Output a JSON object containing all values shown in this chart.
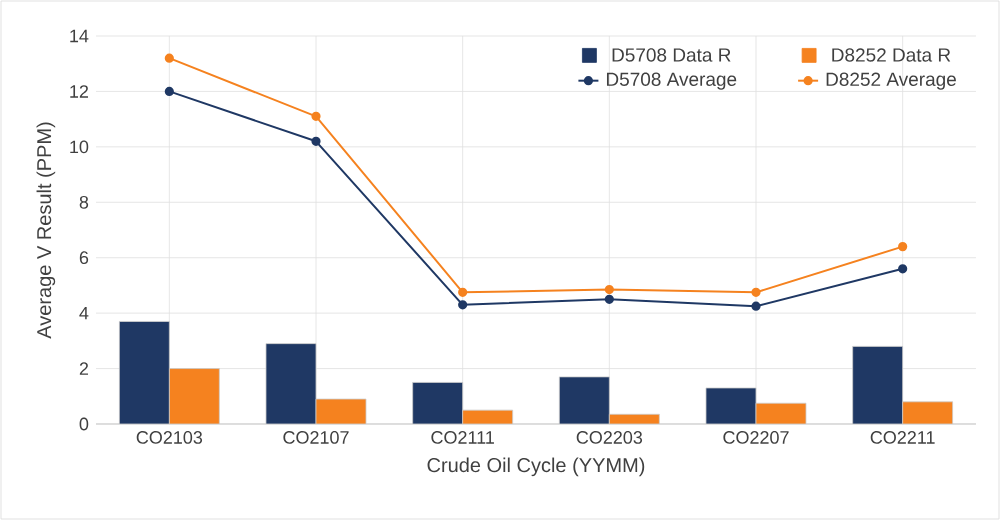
{
  "chart_data": {
    "type": "bar",
    "xlabel": "Crude Oil Cycle (YYMM)",
    "ylabel": "Average V Result (PPM)",
    "categories": [
      "CO2103",
      "CO2107",
      "CO2111",
      "CO2203",
      "CO2207",
      "CO2211"
    ],
    "series": [
      {
        "name": "D5708 Data R",
        "color": "#1f3864",
        "values": [
          3.7,
          2.9,
          1.5,
          1.7,
          1.3,
          2.8
        ]
      },
      {
        "name": "D8252 Data R",
        "color": "#f5821f",
        "values": [
          2.0,
          0.9,
          0.5,
          0.35,
          0.75,
          0.8
        ]
      },
      {
        "name": "D5708 Average",
        "type": "line",
        "marker": "circle",
        "color": "#1f3864",
        "values": [
          12.0,
          10.2,
          4.3,
          4.5,
          4.25,
          5.6
        ]
      },
      {
        "name": "D8252 Average",
        "type": "line",
        "marker": "circle",
        "color": "#f5821f",
        "values": [
          13.2,
          11.1,
          4.75,
          4.85,
          4.75,
          6.4
        ]
      }
    ],
    "ylim": [
      0,
      14
    ],
    "yticks": [
      0,
      2,
      4,
      6,
      8,
      10,
      12,
      14
    ],
    "grid": true,
    "legend": "top right"
  }
}
